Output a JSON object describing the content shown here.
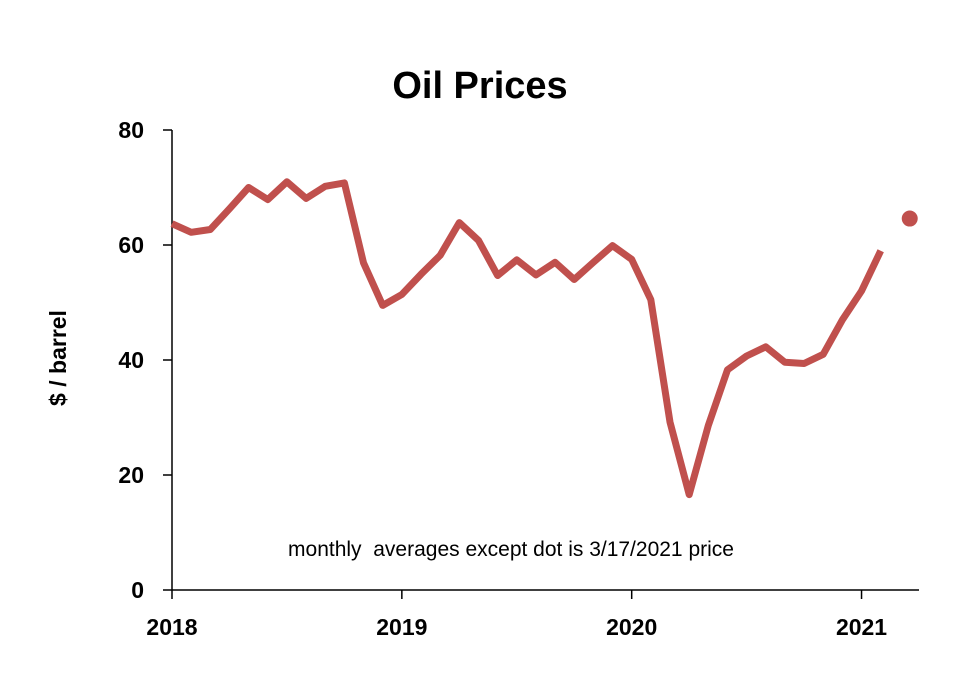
{
  "chart_data": {
    "type": "line",
    "title": "Oil Prices",
    "ylabel": "$ / barrel",
    "xlabel": "",
    "ylim": [
      0,
      80
    ],
    "xlim": [
      "2018-01",
      "2021-04"
    ],
    "yticks": [
      "0",
      "20",
      "40",
      "60",
      "80"
    ],
    "xticks": [
      "2018",
      "2019",
      "2020",
      "2021"
    ],
    "annotation": "monthly  averages except dot is 3/17/2021 price",
    "grid": false,
    "line_color": "#c0504d",
    "series": [
      {
        "x": [
          "2018-01",
          "2018-02",
          "2018-03",
          "2018-04",
          "2018-05",
          "2018-06",
          "2018-07",
          "2018-08",
          "2018-09",
          "2018-10",
          "2018-11",
          "2018-12",
          "2019-01",
          "2019-02",
          "2019-03",
          "2019-04",
          "2019-05",
          "2019-06",
          "2019-07",
          "2019-08",
          "2019-09",
          "2019-10",
          "2019-11",
          "2019-12",
          "2020-01",
          "2020-02",
          "2020-03",
          "2020-04",
          "2020-05",
          "2020-06",
          "2020-07",
          "2020-08",
          "2020-09",
          "2020-10",
          "2020-11",
          "2020-12",
          "2021-01",
          "2021-02"
        ],
        "values": [
          63.7,
          62.2,
          62.7,
          66.3,
          70.0,
          67.9,
          71.0,
          68.1,
          70.2,
          70.8,
          56.9,
          49.5,
          51.4,
          54.9,
          58.2,
          63.9,
          60.8,
          54.7,
          57.4,
          54.8,
          57.0,
          54.0,
          57.0,
          59.9,
          57.5,
          50.5,
          29.2,
          16.6,
          28.6,
          38.3,
          40.7,
          42.3,
          39.6,
          39.4,
          41.0,
          47.0,
          52.0,
          59.0
        ]
      }
    ],
    "dot": {
      "x": "2021-03-17",
      "value": 64.6
    }
  }
}
